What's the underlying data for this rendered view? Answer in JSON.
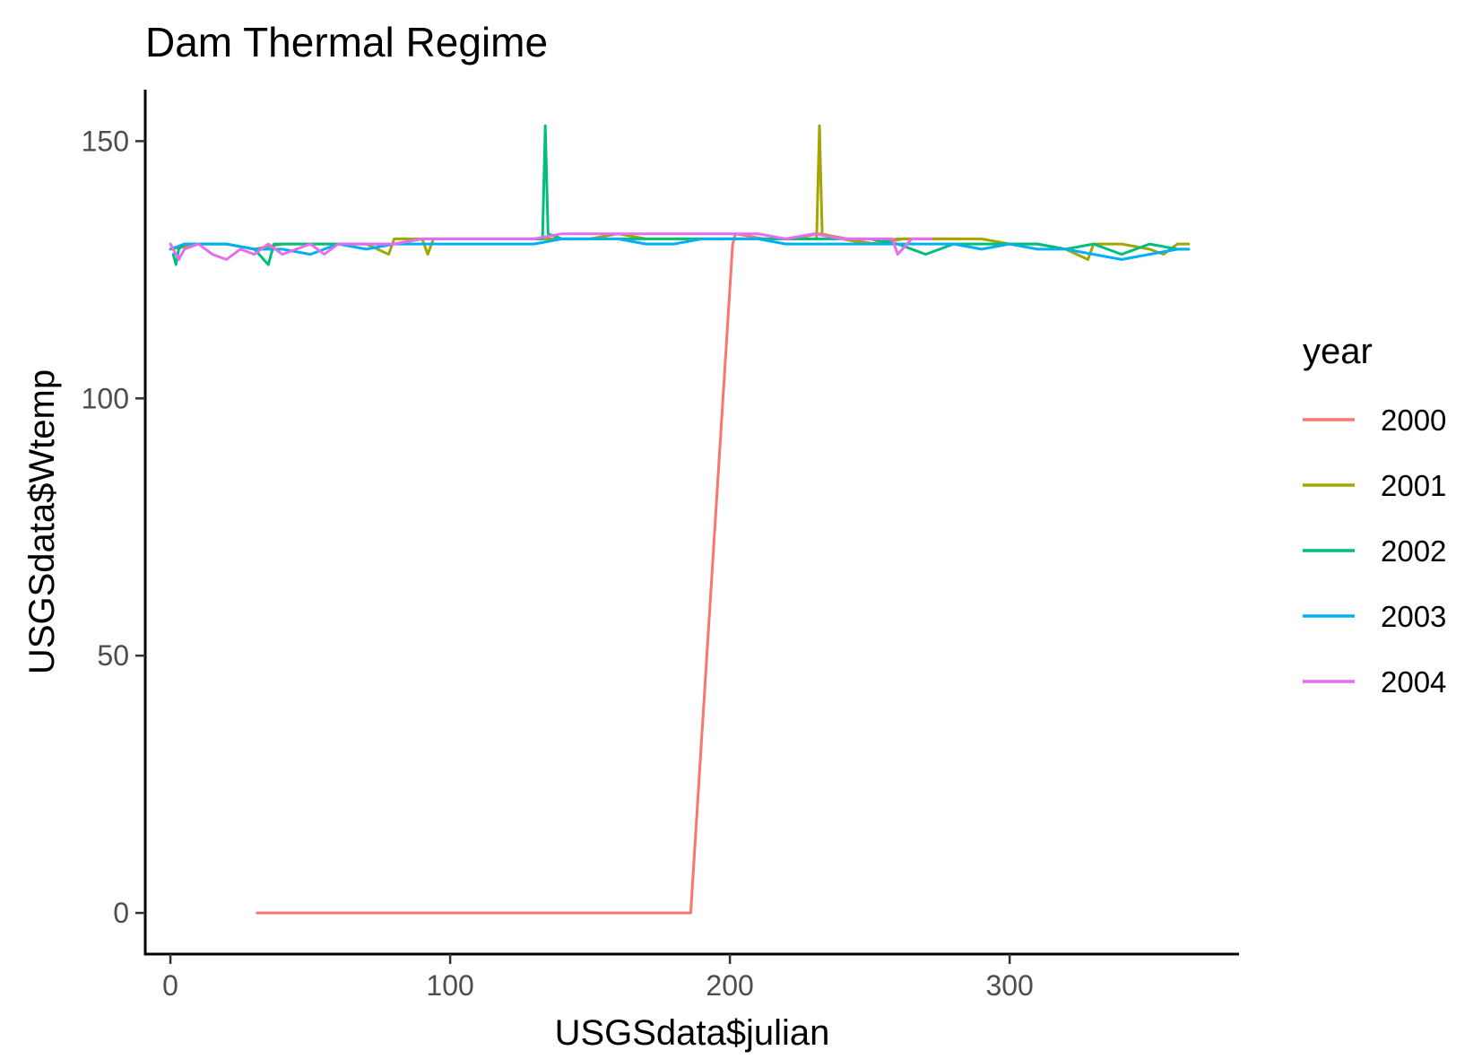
{
  "chart_data": {
    "type": "line",
    "title": "Dam Thermal Regime",
    "xlabel": "USGSdata$julian",
    "ylabel": "USGSdata$Wtemp",
    "xlim": [
      -9,
      382
    ],
    "ylim": [
      -8,
      160
    ],
    "xticks": [
      0,
      100,
      200,
      300
    ],
    "yticks": [
      0,
      50,
      100,
      150
    ],
    "grid": false,
    "legend": {
      "title": "year",
      "position": "right"
    },
    "series": [
      {
        "name": "2000",
        "color": "#F8766D",
        "x": [
          31,
          60,
          100,
          140,
          186,
          201,
          202,
          212,
          222,
          232,
          242,
          252,
          262,
          272,
          282
        ],
        "y": [
          0,
          0,
          0,
          0,
          0,
          130,
          132,
          131,
          131,
          132,
          131,
          130,
          131,
          131,
          131
        ]
      },
      {
        "name": "2001",
        "color": "#A3A500",
        "x": [
          0,
          10,
          20,
          30,
          40,
          50,
          60,
          70,
          78,
          80,
          90,
          92,
          94,
          100,
          110,
          120,
          130,
          140,
          150,
          160,
          170,
          180,
          190,
          200,
          210,
          220,
          231,
          232,
          233,
          240,
          250,
          260,
          270,
          280,
          290,
          300,
          310,
          320,
          328,
          330,
          340,
          350,
          355,
          360,
          364
        ],
        "y": [
          129,
          130,
          130,
          129,
          130,
          130,
          130,
          130,
          128,
          131,
          131,
          128,
          131,
          131,
          131,
          131,
          131,
          131,
          131,
          132,
          131,
          131,
          131,
          131,
          131,
          131,
          131,
          153,
          132,
          131,
          130,
          131,
          131,
          131,
          131,
          130,
          130,
          129,
          127,
          130,
          130,
          129,
          128,
          130,
          130
        ]
      },
      {
        "name": "2002",
        "color": "#00BF7D",
        "x": [
          1,
          2,
          3,
          5,
          10,
          20,
          30,
          35,
          37,
          40,
          50,
          60,
          70,
          80,
          90,
          100,
          110,
          120,
          130,
          133,
          134,
          135,
          140,
          150,
          160,
          170,
          180,
          190,
          200,
          210,
          220,
          230,
          240,
          250,
          260,
          270,
          280,
          290,
          300,
          310,
          320,
          330,
          340,
          350,
          360,
          364
        ],
        "y": [
          128,
          126,
          129,
          130,
          130,
          130,
          129,
          126,
          130,
          130,
          130,
          130,
          130,
          130,
          131,
          131,
          131,
          131,
          131,
          131,
          153,
          132,
          131,
          131,
          131,
          131,
          131,
          131,
          131,
          131,
          131,
          131,
          131,
          131,
          130,
          128,
          130,
          130,
          130,
          130,
          129,
          130,
          128,
          130,
          129,
          129
        ]
      },
      {
        "name": "2003",
        "color": "#00B0F6",
        "x": [
          0,
          5,
          10,
          20,
          30,
          40,
          50,
          60,
          70,
          80,
          90,
          100,
          110,
          120,
          130,
          140,
          150,
          160,
          170,
          180,
          190,
          200,
          210,
          220,
          230,
          240,
          250,
          260,
          270,
          280,
          290,
          300,
          310,
          320,
          330,
          340,
          350,
          360,
          364
        ],
        "y": [
          129,
          130,
          130,
          130,
          129,
          129,
          128,
          130,
          129,
          130,
          130,
          130,
          130,
          130,
          130,
          131,
          131,
          131,
          130,
          130,
          131,
          131,
          131,
          130,
          130,
          130,
          130,
          130,
          130,
          130,
          129,
          130,
          129,
          129,
          128,
          127,
          128,
          129,
          129
        ]
      },
      {
        "name": "2004",
        "color": "#E76BF3",
        "x": [
          0,
          3,
          5,
          10,
          15,
          20,
          25,
          30,
          35,
          40,
          45,
          50,
          55,
          60,
          70,
          80,
          90,
          100,
          110,
          120,
          130,
          140,
          150,
          160,
          170,
          180,
          190,
          200,
          210,
          220,
          230,
          240,
          250,
          258,
          260,
          265,
          270,
          272
        ],
        "y": [
          130,
          127,
          129,
          130,
          128,
          127,
          129,
          128,
          130,
          128,
          129,
          130,
          128,
          130,
          130,
          130,
          131,
          131,
          131,
          131,
          131,
          132,
          132,
          132,
          132,
          132,
          132,
          132,
          132,
          131,
          132,
          131,
          131,
          131,
          128,
          131,
          131,
          131
        ]
      }
    ]
  }
}
